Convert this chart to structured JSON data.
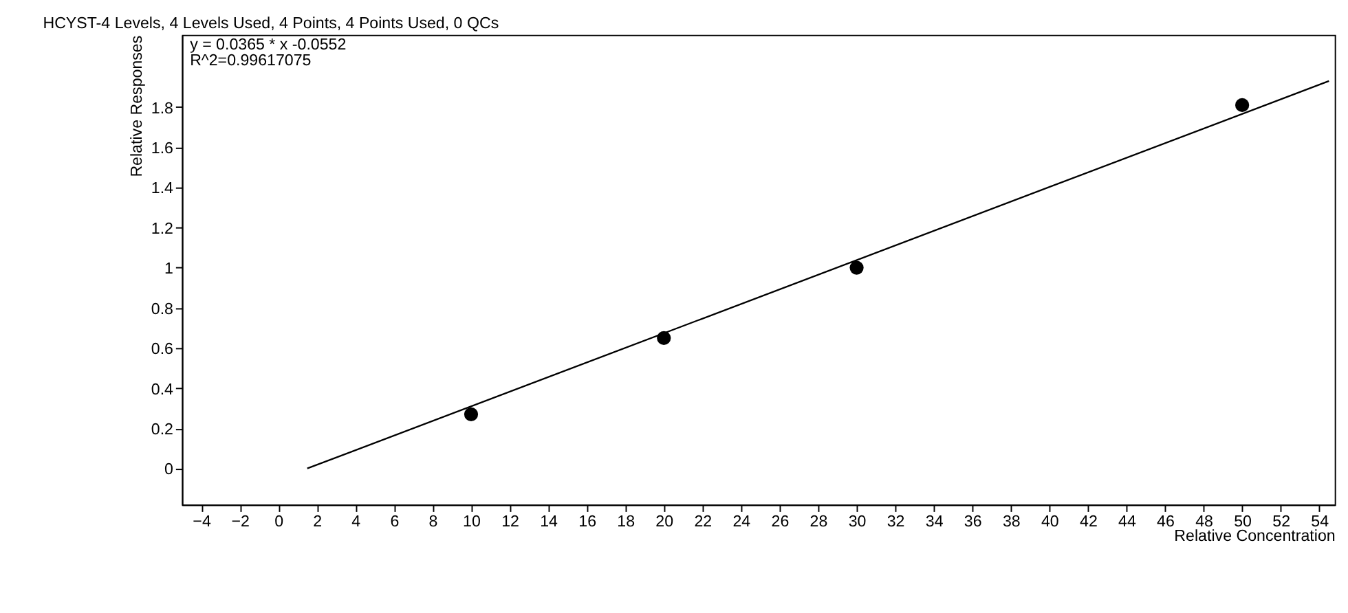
{
  "chart_data": {
    "type": "scatter",
    "title": "HCYST-4 Levels, 4 Levels Used, 4 Points, 4 Points Used, 0 QCs",
    "xlabel": "Relative Concentration",
    "ylabel": "Relative Responses",
    "annotations": [
      "y = 0.0365 * x -0.0552",
      "R^2=0.99617075"
    ],
    "series": [
      {
        "color": "#000000",
        "marker": "circle",
        "x": [
          10,
          20,
          30,
          50
        ],
        "values": [
          0.27,
          0.65,
          1.0,
          1.81
        ]
      },
      {
        "type": "line",
        "color": "#000000",
        "marker": "none",
        "line_style": "solid",
        "x": [
          1.5,
          54.5
        ],
        "values": [
          0,
          1.93
        ]
      }
    ],
    "xlim": [
      -5,
      54.8
    ],
    "xticks": [
      -4,
      -2,
      0,
      2,
      4,
      6,
      8,
      10,
      12,
      14,
      16,
      18,
      20,
      22,
      24,
      26,
      28,
      30,
      32,
      34,
      36,
      38,
      40,
      42,
      44,
      46,
      48,
      50,
      52,
      54
    ],
    "ylim": [
      -0.18,
      2.16
    ],
    "yticks": [
      0,
      0.2,
      0.4,
      0.6,
      0.8,
      1,
      1.2,
      1.4,
      1.6,
      1.8
    ],
    "grid": false
  }
}
